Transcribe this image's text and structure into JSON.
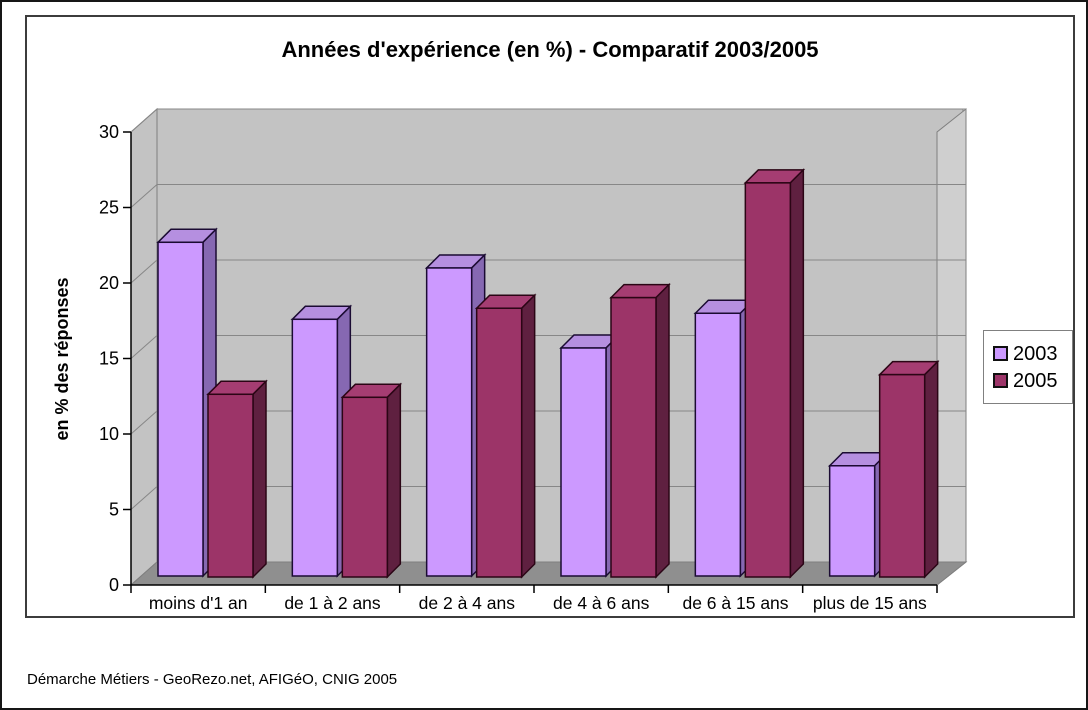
{
  "chart_data": {
    "type": "bar",
    "variant": "3d-clustered-column",
    "title": "Années d'expérience (en %) - Comparatif 2003/2005",
    "ylabel": "en % des réponses",
    "xlabel": "",
    "categories": [
      "moins d'1 an",
      "de 1 à 2 ans",
      "de 2 à 4 ans",
      "de 4 à 6 ans",
      "de 6 à 15 ans",
      "plus de 15 ans"
    ],
    "series": [
      {
        "name": "2003",
        "values": [
          22.1,
          17.0,
          20.4,
          15.1,
          17.4,
          7.3
        ],
        "color": "#CC99FF",
        "face_colors": {
          "front": "#CC99FF",
          "top": "#B58FE0",
          "side": "#8668B2",
          "outline": "#1B0B33"
        }
      },
      {
        "name": "2005",
        "values": [
          12.1,
          11.9,
          17.8,
          18.5,
          26.1,
          13.4
        ],
        "color": "#9C3468",
        "face_colors": {
          "front": "#9C3468",
          "top": "#A53D72",
          "side": "#5F2040",
          "outline": "#2B0515"
        }
      }
    ],
    "ylim": [
      0,
      30
    ],
    "yticks": [
      0,
      5,
      10,
      15,
      20,
      25,
      30
    ],
    "grid": true,
    "legend_position": "right",
    "wall_color": "#C3C3C3",
    "right_wall_color": "#CFCFCF",
    "floor_color": "#8F8F8F",
    "gridline_color": "#878787",
    "wall_edge_color": "#7F7F7F"
  },
  "footer": {
    "text": "Démarche Métiers - GeoRezo.net, AFIGéO, CNIG 2005"
  }
}
